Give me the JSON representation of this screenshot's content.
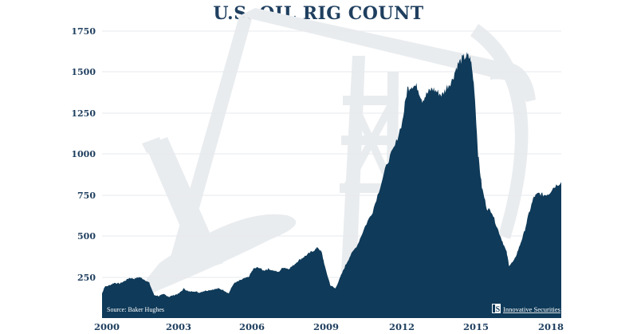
{
  "chart_data": {
    "type": "area",
    "title": "U.S. OIL RIG COUNT",
    "xlabel": "",
    "ylabel": "",
    "ylim": [
      0,
      1750
    ],
    "xlim": [
      2000,
      2018.5
    ],
    "grid": true,
    "y_ticks": [
      250,
      500,
      750,
      1000,
      1250,
      1500,
      1750
    ],
    "x_ticks": [
      "2000",
      "2003",
      "2006",
      "2009",
      "2012",
      "2015",
      "2018"
    ],
    "series": [
      {
        "name": "U.S. Oil Rig Count",
        "color": "#0f3a59",
        "x": [
          2000.0,
          2000.1,
          2000.3,
          2000.5,
          2000.7,
          2000.9,
          2001.1,
          2001.3,
          2001.5,
          2001.7,
          2001.9,
          2002.1,
          2002.3,
          2002.5,
          2002.7,
          2002.9,
          2003.1,
          2003.3,
          2003.5,
          2003.7,
          2003.9,
          2004.1,
          2004.3,
          2004.5,
          2004.7,
          2004.9,
          2005.1,
          2005.3,
          2005.5,
          2005.7,
          2005.9,
          2006.1,
          2006.3,
          2006.5,
          2006.7,
          2006.9,
          2007.1,
          2007.3,
          2007.5,
          2007.7,
          2007.9,
          2008.1,
          2008.3,
          2008.5,
          2008.7,
          2008.85,
          2009.0,
          2009.2,
          2009.4,
          2009.6,
          2009.8,
          2010.0,
          2010.3,
          2010.6,
          2010.9,
          2011.2,
          2011.5,
          2011.8,
          2012.1,
          2012.3,
          2012.5,
          2012.7,
          2012.9,
          2013.1,
          2013.3,
          2013.5,
          2013.7,
          2013.9,
          2014.1,
          2014.3,
          2014.5,
          2014.7,
          2014.85,
          2015.0,
          2015.15,
          2015.3,
          2015.5,
          2015.7,
          2015.9,
          2016.1,
          2016.3,
          2016.4,
          2016.6,
          2016.8,
          2017.0,
          2017.2,
          2017.4,
          2017.6,
          2017.8,
          2018.0,
          2018.2,
          2018.5
        ],
        "values": [
          150,
          190,
          200,
          215,
          210,
          225,
          245,
          240,
          250,
          235,
          215,
          140,
          135,
          145,
          130,
          140,
          150,
          180,
          160,
          165,
          155,
          165,
          170,
          175,
          180,
          170,
          150,
          210,
          225,
          240,
          250,
          300,
          310,
          290,
          300,
          290,
          280,
          310,
          300,
          320,
          350,
          370,
          390,
          410,
          430,
          400,
          300,
          200,
          180,
          250,
          320,
          380,
          450,
          560,
          650,
          800,
          950,
          1050,
          1200,
          1400,
          1420,
          1410,
          1330,
          1370,
          1400,
          1380,
          1360,
          1410,
          1450,
          1540,
          1580,
          1600,
          1580,
          1400,
          1000,
          800,
          670,
          650,
          560,
          480,
          400,
          320,
          350,
          430,
          520,
          640,
          740,
          760,
          750,
          760,
          800,
          830
        ]
      }
    ],
    "annotations": [
      "Source: Baker Hughes",
      "Innovative Securities"
    ]
  },
  "header": {
    "title": "U.S. OIL RIG COUNT"
  },
  "axis": {
    "y_labels": [
      "1750",
      "1500",
      "1250",
      "1000",
      "750",
      "500",
      "250"
    ],
    "x_labels": [
      "2000",
      "2003",
      "2006",
      "2009",
      "2012",
      "2015",
      "2018"
    ]
  },
  "footer": {
    "source": "Source: Baker Hughes",
    "logo_mark": "IS",
    "brand": "Innovative Securities"
  },
  "colors": {
    "area": "#0f3a59",
    "text": "#1f3f5f",
    "grid": "#e6e9ec",
    "watermark": "#e9ecef"
  }
}
